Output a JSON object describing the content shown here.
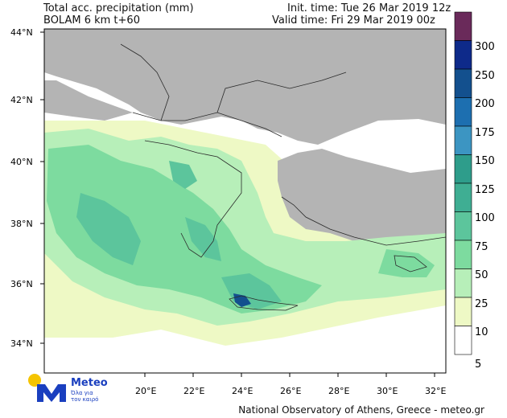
{
  "header": {
    "title_line1": "Total acc. precipitation (mm)",
    "title_line2": "BOLAM 6 km t+60",
    "init_time": "Init. time: Tue 26 Mar 2019 12z",
    "valid_time": "Valid time: Fri 29 Mar 2019 00z"
  },
  "axes": {
    "lat_labels": [
      "44°N",
      "42°N",
      "40°N",
      "38°N",
      "36°N",
      "34°N"
    ],
    "lon_labels": [
      "20°E",
      "22°E",
      "24°E",
      "26°E",
      "28°E",
      "30°E",
      "32°E"
    ]
  },
  "colorbar": {
    "levels": [
      {
        "value": "300",
        "color": "#6a2a5a"
      },
      {
        "value": "250",
        "color": "#0e2a8a"
      },
      {
        "value": "200",
        "color": "#13508e"
      },
      {
        "value": "175",
        "color": "#1d6fb0"
      },
      {
        "value": "150",
        "color": "#3c95c2"
      },
      {
        "value": "125",
        "color": "#2e9d8b"
      },
      {
        "value": "100",
        "color": "#3fae93"
      },
      {
        "value": "75",
        "color": "#5cc59c"
      },
      {
        "value": "50",
        "color": "#7ddb9f"
      },
      {
        "value": "25",
        "color": "#b7efb9"
      },
      {
        "value": "10",
        "color": "#eef9c5"
      },
      {
        "value": "5",
        "color": "#ffffff"
      }
    ]
  },
  "colors": {
    "land": "#b4b4b4",
    "sea": "#ffffff",
    "border": "#2a2a2a"
  },
  "logo": {
    "brand": "Meteo",
    "tagline_1": "Όλα για",
    "tagline_2": "τον καιρό"
  },
  "footer": "National Observatory of Athens, Greece - meteo.gr"
}
